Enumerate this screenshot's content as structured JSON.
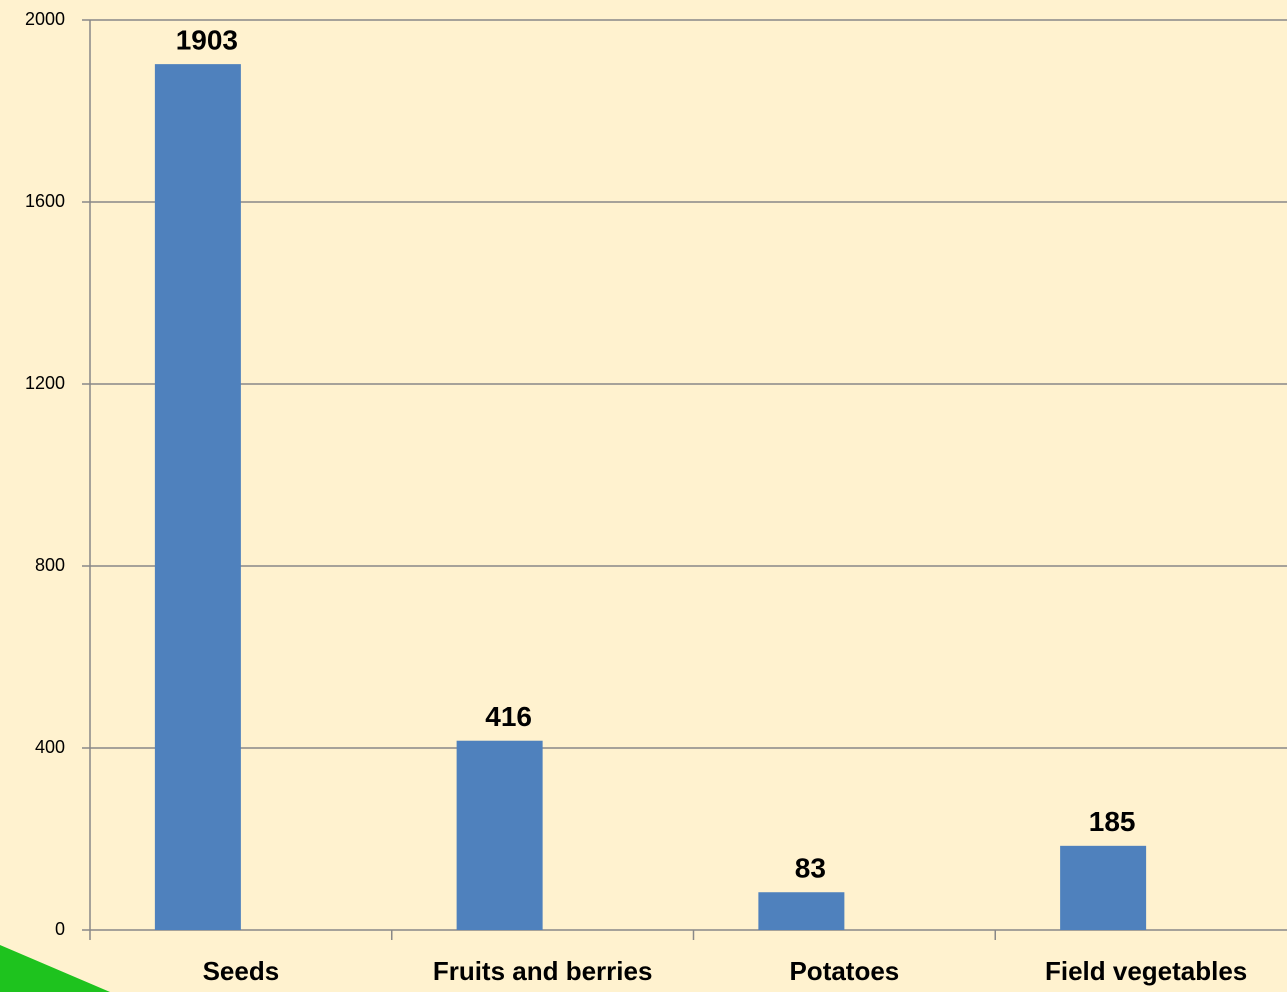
{
  "chart_data": {
    "type": "bar",
    "categories": [
      "Seeds",
      "Fruits and berries",
      "Potatoes",
      "Field vegetables"
    ],
    "values": [
      1903,
      416,
      83,
      185
    ],
    "color": "#4f81bd",
    "ylim": [
      0,
      2000
    ],
    "yticks": [
      0,
      400,
      800,
      1200,
      1600,
      2000
    ],
    "grid": true
  }
}
